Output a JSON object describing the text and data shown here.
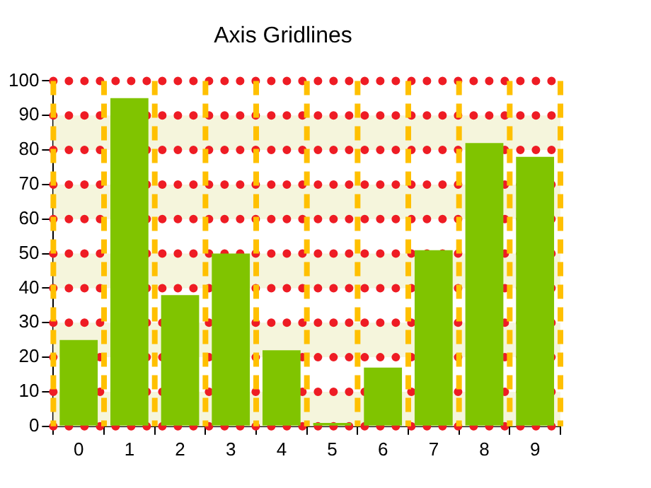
{
  "chart_data": {
    "type": "bar",
    "title": "Axis Gridlines",
    "categories": [
      "0",
      "1",
      "2",
      "3",
      "4",
      "5",
      "6",
      "7",
      "8",
      "9"
    ],
    "values": [
      25,
      95,
      38,
      50,
      22,
      1,
      17,
      51,
      82,
      78
    ],
    "color": "#80c400",
    "ylim": [
      0,
      100
    ],
    "yticks": [
      0,
      10,
      20,
      30,
      40,
      50,
      60,
      70,
      80,
      90,
      100
    ],
    "grid": true,
    "legend": false,
    "bands": [
      {
        "axis": "y",
        "from": 0,
        "to": 10,
        "color": "#f5f5dc"
      },
      {
        "axis": "y",
        "from": 20,
        "to": 30,
        "color": "#f5f5dc"
      },
      {
        "axis": "y",
        "from": 40,
        "to": 50,
        "color": "#f5f5dc"
      },
      {
        "axis": "y",
        "from": 60,
        "to": 70,
        "color": "#f5f5dc"
      },
      {
        "axis": "y",
        "from": 80,
        "to": 90,
        "color": "#f5f5dc"
      }
    ]
  }
}
